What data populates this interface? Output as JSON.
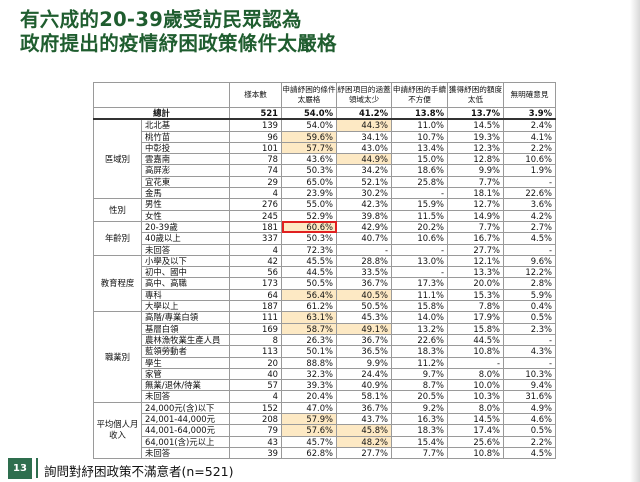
{
  "title": {
    "line1": "有六成的20-39歲受訪民眾認為",
    "line2": "政府提出的疫情紓困政策條件太嚴格"
  },
  "page_number": "13",
  "footnote": "詢問對紓困政策不滿意者(n=521)",
  "table": {
    "headers": [
      "樣本數",
      "申請紓困的條件太嚴格",
      "紓困項目的涵蓋領域太少",
      "申請紓困的手續不方便",
      "獲得紓困的額度太低",
      "無明確意見"
    ],
    "total": {
      "label": "總計",
      "values": [
        "521",
        "54.0%",
        "41.2%",
        "13.8%",
        "13.7%",
        "3.9%"
      ]
    },
    "groups": [
      {
        "name": "區域別",
        "rows": [
          {
            "label": "北北基",
            "values": [
              "139",
              "54.0%",
              "44.3%",
              "11.0%",
              "14.5%",
              "2.4%"
            ],
            "hl": [
              2
            ]
          },
          {
            "label": "桃竹苗",
            "values": [
              "96",
              "59.6%",
              "34.1%",
              "10.7%",
              "19.3%",
              "4.1%"
            ],
            "hl": [
              1
            ]
          },
          {
            "label": "中彰投",
            "values": [
              "101",
              "57.7%",
              "43.0%",
              "13.4%",
              "12.3%",
              "2.2%"
            ],
            "hl": [
              1
            ]
          },
          {
            "label": "雲嘉南",
            "values": [
              "78",
              "43.6%",
              "44.9%",
              "15.0%",
              "12.8%",
              "10.6%"
            ],
            "hl": [
              2
            ]
          },
          {
            "label": "高屏澎",
            "values": [
              "74",
              "50.3%",
              "34.2%",
              "18.6%",
              "9.9%",
              "1.9%"
            ],
            "hl": []
          },
          {
            "label": "宜花東",
            "values": [
              "29",
              "65.0%",
              "52.1%",
              "25.8%",
              "7.7%",
              "-"
            ],
            "hl": []
          },
          {
            "label": "金馬",
            "values": [
              "4",
              "23.9%",
              "30.2%",
              "-",
              "18.1%",
              "22.6%"
            ],
            "hl": []
          }
        ]
      },
      {
        "name": "性別",
        "rows": [
          {
            "label": "男性",
            "values": [
              "276",
              "55.0%",
              "42.3%",
              "15.9%",
              "12.7%",
              "3.6%"
            ],
            "hl": []
          },
          {
            "label": "女性",
            "values": [
              "245",
              "52.9%",
              "39.8%",
              "11.5%",
              "14.9%",
              "4.2%"
            ],
            "hl": []
          }
        ]
      },
      {
        "name": "年齡別",
        "rows": [
          {
            "label": "20-39歲",
            "values": [
              "181",
              "60.6%",
              "42.9%",
              "20.2%",
              "7.7%",
              "2.7%"
            ],
            "hl": [
              1
            ],
            "box": [
              1
            ]
          },
          {
            "label": "40歲以上",
            "values": [
              "337",
              "50.3%",
              "40.7%",
              "10.6%",
              "16.7%",
              "4.5%"
            ],
            "hl": []
          },
          {
            "label": "未回答",
            "values": [
              "4",
              "72.3%",
              "-",
              "-",
              "27.7%",
              "-"
            ],
            "hl": []
          }
        ]
      },
      {
        "name": "教育程度",
        "rows": [
          {
            "label": "小學及以下",
            "values": [
              "42",
              "45.5%",
              "28.8%",
              "13.0%",
              "12.1%",
              "9.6%"
            ],
            "hl": []
          },
          {
            "label": "初中、國中",
            "values": [
              "56",
              "44.5%",
              "33.5%",
              "-",
              "13.3%",
              "12.2%"
            ],
            "hl": []
          },
          {
            "label": "高中、高職",
            "values": [
              "173",
              "50.5%",
              "36.7%",
              "17.3%",
              "20.0%",
              "2.8%"
            ],
            "hl": []
          },
          {
            "label": "專科",
            "values": [
              "64",
              "56.4%",
              "40.5%",
              "11.1%",
              "15.3%",
              "5.9%"
            ],
            "hl": [
              1,
              2
            ]
          },
          {
            "label": "大學以上",
            "values": [
              "187",
              "61.2%",
              "50.5%",
              "15.8%",
              "7.8%",
              "0.4%"
            ],
            "hl": []
          }
        ]
      },
      {
        "name": "職業別",
        "rows": [
          {
            "label": "高階/專業白領",
            "values": [
              "111",
              "63.1%",
              "45.3%",
              "14.0%",
              "17.9%",
              "0.5%"
            ],
            "hl": [
              1
            ]
          },
          {
            "label": "基層白領",
            "values": [
              "169",
              "58.7%",
              "49.1%",
              "13.2%",
              "15.8%",
              "2.3%"
            ],
            "hl": [
              1,
              2
            ]
          },
          {
            "label": "農林漁牧業生產人員",
            "values": [
              "8",
              "26.3%",
              "36.7%",
              "22.6%",
              "44.5%",
              "-"
            ],
            "hl": []
          },
          {
            "label": "藍領勞動者",
            "values": [
              "113",
              "50.1%",
              "36.5%",
              "18.3%",
              "10.8%",
              "4.3%"
            ],
            "hl": []
          },
          {
            "label": "學生",
            "values": [
              "20",
              "88.8%",
              "9.9%",
              "11.2%",
              "-",
              "-"
            ],
            "hl": []
          },
          {
            "label": "家管",
            "values": [
              "40",
              "32.3%",
              "24.4%",
              "9.7%",
              "8.0%",
              "10.3%"
            ],
            "hl": []
          },
          {
            "label": "無業/退休/待業",
            "values": [
              "57",
              "39.3%",
              "40.9%",
              "8.7%",
              "10.0%",
              "9.4%"
            ],
            "hl": []
          },
          {
            "label": "未回答",
            "values": [
              "4",
              "20.4%",
              "58.1%",
              "20.5%",
              "10.3%",
              "31.6%"
            ],
            "hl": []
          }
        ]
      },
      {
        "name": "平均個人月收入",
        "rows": [
          {
            "label": "24,000元(含)以下",
            "values": [
              "152",
              "47.0%",
              "36.7%",
              "9.2%",
              "8.0%",
              "4.9%"
            ],
            "hl": []
          },
          {
            "label": "24,001-44,000元",
            "values": [
              "208",
              "57.9%",
              "43.7%",
              "16.3%",
              "14.5%",
              "4.6%"
            ],
            "hl": [
              1
            ]
          },
          {
            "label": "44,001-64,000元",
            "values": [
              "79",
              "57.6%",
              "45.8%",
              "18.3%",
              "17.4%",
              "0.5%"
            ],
            "hl": [
              1,
              2
            ]
          },
          {
            "label": "64,001(含)元以上",
            "values": [
              "43",
              "45.7%",
              "48.2%",
              "15.4%",
              "25.6%",
              "2.2%"
            ],
            "hl": [
              2
            ]
          },
          {
            "label": "未回答",
            "values": [
              "39",
              "62.8%",
              "27.7%",
              "7.7%",
              "10.8%",
              "4.5%"
            ],
            "hl": []
          }
        ]
      }
    ]
  }
}
